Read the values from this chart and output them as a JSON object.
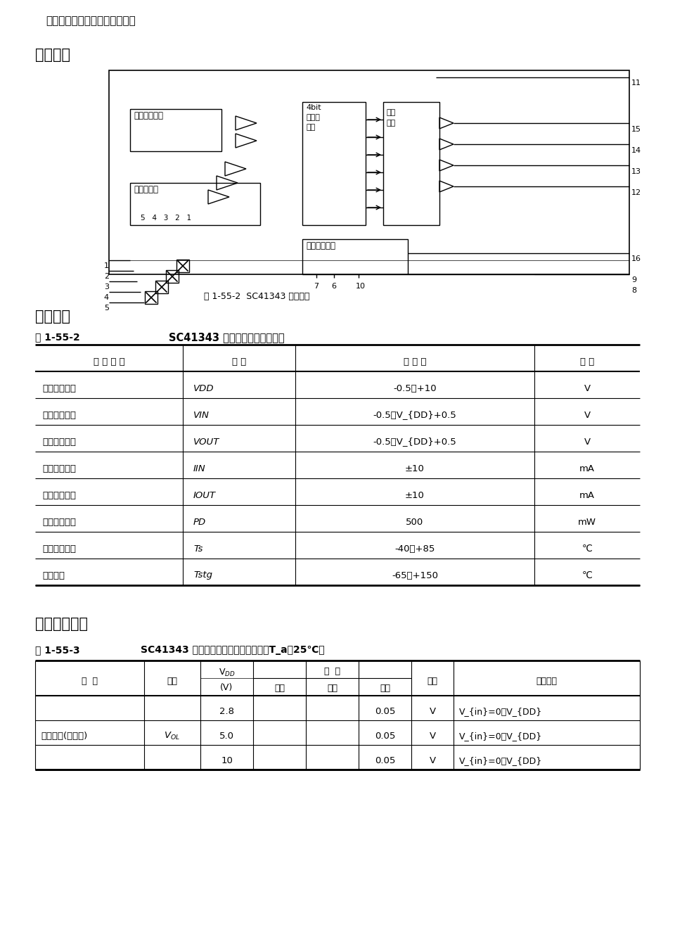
{
  "bg_color": "#ffffff",
  "text_color": "#000000",
  "intro_text": "间没有接收到发射信号时为止。",
  "section1_title": "逻辑框图",
  "fig_caption": "图 1-55-2  SC41343 逻辑框图",
  "section2_title": "极限参数",
  "table1_label": "表 1-55-2",
  "table1_title": "SC41343 极限参数符号及参数値",
  "table1_headers": [
    "参 数 名 称",
    "符 号",
    "参 数 値",
    "单 位"
  ],
  "table1_rows": [
    [
      "直流电源电压",
      "V_{DD}",
      "-0.5～+10",
      "V"
    ],
    [
      "直流输入电压",
      "V_{IN}",
      "-0.5～V_{DD}+0.5",
      "V"
    ],
    [
      "直流输出电压",
      "V_{OUT}",
      "-0.5～V_{DD}+0.5",
      "V"
    ],
    [
      "直流输入电流",
      "I_{IN}",
      "±10",
      "mA"
    ],
    [
      "直流输出电流",
      "I_{OUT}",
      "±10",
      "mA"
    ],
    [
      "直流电流消耗",
      "P_{D}",
      "500",
      "mW"
    ],
    [
      "工作环境温度",
      "T_{s}",
      "-40～+85",
      "℃"
    ],
    [
      "贯存温度",
      "T_{stg}",
      "-65～+150",
      "℃"
    ]
  ],
  "section3_title": "电气技术指标",
  "table2_label": "表 1-55-3",
  "table2_title": "SC41343 电气技术指标符号及参数値（T_a＝25℃）",
  "table2_col_headers": [
    "名 称",
    "符号",
    "V_{DD}\n(V)",
    "最小",
    "典型",
    "最大",
    "单位",
    "测试条件"
  ],
  "table2_rows": [
    [
      "输出电压(低电平)",
      "V_{OL}",
      "2.8",
      "",
      "",
      "0.05",
      "V",
      "V_{in}=0或V_{DD}"
    ],
    [
      "",
      "",
      "5.0",
      "",
      "",
      "0.05",
      "V",
      "V_{in}=0或V_{DD}"
    ],
    [
      "",
      "",
      "10",
      "",
      "",
      "0.05",
      "V",
      "V_{in}=0或V_{DD}"
    ]
  ]
}
